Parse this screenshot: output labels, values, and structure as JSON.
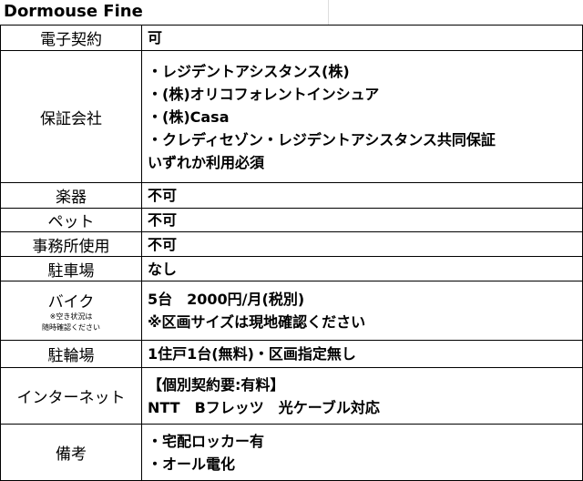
{
  "title": "Dormouse Fine",
  "rows": [
    {
      "label": "電子契約",
      "lines": [
        "可"
      ]
    },
    {
      "label": "保証会社",
      "lines": [
        "・レジデントアシスタンス(株)",
        "・(株)オリコフォレントインシュア",
        "・(株)Casa",
        "・クレディセゾン・レジデントアシスタンス共同保証",
        "いずれか利用必須"
      ]
    },
    {
      "label": "楽器",
      "lines": [
        "不可"
      ]
    },
    {
      "label": "ペット",
      "lines": [
        "不可"
      ]
    },
    {
      "label": "事務所使用",
      "lines": [
        "不可"
      ]
    },
    {
      "label": "駐車場",
      "lines": [
        "なし"
      ]
    },
    {
      "label": "バイク",
      "note": [
        "※空き状況は",
        "随時確認ください"
      ],
      "lines": [
        "5台　2000円/月(税別)",
        "※区画サイズは現地確認ください"
      ]
    },
    {
      "label": "駐輪場",
      "lines": [
        "1住戸1台(無料)・区画指定無し"
      ]
    },
    {
      "label": "インターネット",
      "lines": [
        "【個別契約要:有料】",
        "NTT　Bフレッツ　光ケーブル対応"
      ]
    },
    {
      "label": "備考",
      "lines": [
        "・宅配ロッカー有",
        "・オール電化"
      ]
    }
  ]
}
